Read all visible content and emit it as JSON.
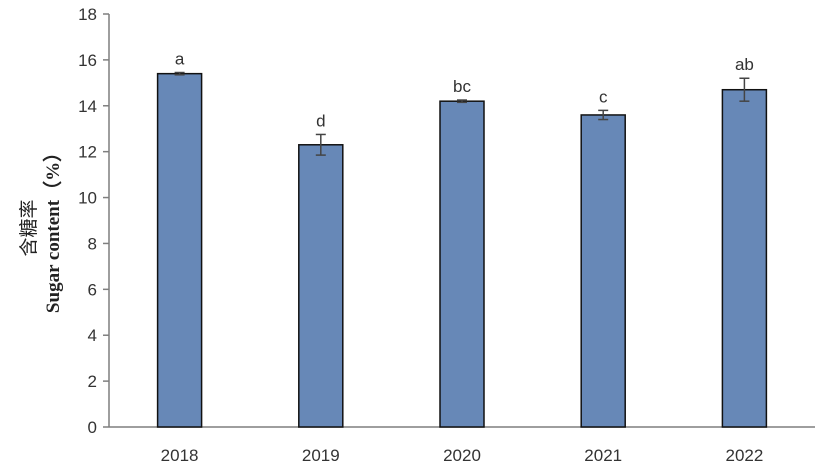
{
  "chart_data": {
    "type": "bar",
    "categories": [
      "2018",
      "2019",
      "2020",
      "2021",
      "2022"
    ],
    "values": [
      15.4,
      12.3,
      14.2,
      13.6,
      14.7
    ],
    "errors": [
      0.05,
      0.45,
      0.05,
      0.2,
      0.5
    ],
    "significance": [
      "a",
      "d",
      "bc",
      "c",
      "ab"
    ],
    "ylabel_cn": "含糖率",
    "ylabel_en": "Sugar content（%）",
    "ylim": [
      0,
      18
    ],
    "yticks": [
      0,
      2,
      4,
      6,
      8,
      10,
      12,
      14,
      16,
      18
    ],
    "grid": false,
    "bar_color": "#6788b7",
    "bar_edge_color": "#111111",
    "axis_color": "#7f7f7f",
    "errorbar_color": "#444444"
  }
}
